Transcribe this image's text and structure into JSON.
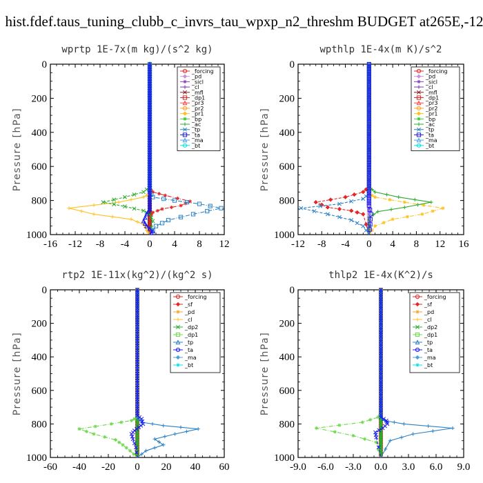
{
  "figure_title": "hist.fdef.taus_tuning_clubb_c_invrs_tau_wpxp_n2_threshm  BUDGET at265E,-12",
  "chart_data": [
    {
      "type": "line",
      "title": "wprtp  1E-7x(m kg)/(s^2 kg)",
      "ylabel": "Pressure [hPa]",
      "xlim": [
        -16,
        12
      ],
      "ylim": [
        1000,
        0
      ],
      "xticks": [
        "-16",
        "-12",
        "-8",
        "-4",
        "0",
        "4",
        "8",
        "12"
      ],
      "yticks": [
        "0",
        "200",
        "400",
        "600",
        "800",
        "1000"
      ],
      "legend": [
        "_forcing",
        "_pd",
        "_sicl",
        "_cl",
        "_mfl",
        "_dp1",
        "_pr3",
        "_pr2",
        "_pr1",
        "_bp",
        "_ac",
        "_tp",
        "_ta",
        "_ma",
        "_bt"
      ],
      "legend_position": "top-right",
      "series": [
        {
          "name": "_forcing",
          "color": "#222222",
          "x": [
            0,
            0
          ],
          "y": [
            0,
            1000
          ]
        },
        {
          "name": "_mfl",
          "color": "#8b1a1a",
          "x": [
            0,
            0
          ],
          "y": [
            0,
            1000
          ]
        },
        {
          "name": "_dp1",
          "color": "#e32626",
          "x": [
            0,
            0,
            0.5,
            2.5,
            6.5,
            5,
            2,
            0.5,
            0,
            0
          ],
          "y": [
            0,
            730,
            750,
            770,
            805,
            830,
            850,
            870,
            900,
            1000
          ]
        },
        {
          "name": "_pr1",
          "color": "#ffc020",
          "x": [
            0,
            0,
            -1,
            -5,
            -13,
            -9,
            -3,
            -1,
            -0.5,
            0
          ],
          "y": [
            0,
            760,
            780,
            810,
            845,
            880,
            910,
            940,
            975,
            1000
          ]
        },
        {
          "name": "_ac",
          "color": "#2aaa2a",
          "x": [
            0,
            0,
            -1,
            -4,
            -7.5,
            -4,
            -1,
            0,
            0.5,
            0
          ],
          "y": [
            0,
            720,
            750,
            780,
            810,
            835,
            860,
            880,
            920,
            1000
          ]
        },
        {
          "name": "_tp",
          "color": "#2880c8",
          "x": [
            0,
            0,
            0.5,
            4,
            8,
            11.5,
            7,
            3,
            1,
            0
          ],
          "y": [
            0,
            750,
            780,
            800,
            820,
            845,
            880,
            915,
            950,
            1000
          ]
        },
        {
          "name": "_ta",
          "color": "#1a1aee",
          "x": [
            0,
            0,
            0,
            -0.5,
            -1,
            -0.5,
            0.5,
            0
          ],
          "y": [
            0,
            820,
            850,
            880,
            920,
            950,
            980,
            1000
          ]
        }
      ]
    },
    {
      "type": "line",
      "title": "wpthlp  1E-4x(m K)/s^2",
      "ylabel": "Pressure [hPa]",
      "xlim": [
        -12,
        16
      ],
      "ylim": [
        1000,
        0
      ],
      "xticks": [
        "-12",
        "-8",
        "-4",
        "0",
        "4",
        "8",
        "12",
        "16"
      ],
      "yticks": [
        "0",
        "200",
        "400",
        "600",
        "800",
        "1000"
      ],
      "legend": [
        "_forcing",
        "_pd",
        "_sicl",
        "_cl",
        "_mfl",
        "_dp1",
        "_pr3",
        "_pr2",
        "_pr1",
        "_bp",
        "_ac",
        "_tp",
        "_ta",
        "_ma",
        "_bt"
      ],
      "legend_position": "top-right",
      "series": [
        {
          "name": "_forcing",
          "color": "#c890d8",
          "x": [
            0,
            0
          ],
          "y": [
            0,
            1000
          ]
        },
        {
          "name": "_dp1",
          "color": "#e32626",
          "x": [
            0,
            0,
            -1,
            -4,
            -9,
            -7,
            -3,
            -1,
            0
          ],
          "y": [
            0,
            720,
            750,
            780,
            810,
            840,
            860,
            880,
            1000
          ]
        },
        {
          "name": "_pr1",
          "color": "#ffc020",
          "x": [
            0,
            0,
            1,
            6,
            12.5,
            9,
            4,
            1,
            0
          ],
          "y": [
            0,
            760,
            780,
            810,
            845,
            880,
            910,
            950,
            1000
          ]
        },
        {
          "name": "_ac",
          "color": "#2aaa2a",
          "x": [
            0,
            0,
            1,
            5,
            10.5,
            6,
            1.5,
            0,
            0
          ],
          "y": [
            0,
            720,
            750,
            780,
            810,
            840,
            865,
            900,
            1000
          ]
        },
        {
          "name": "_tp",
          "color": "#2880c8",
          "x": [
            0,
            0,
            -1,
            -5,
            -11.5,
            -7,
            -3,
            -1,
            0
          ],
          "y": [
            0,
            760,
            790,
            820,
            845,
            880,
            915,
            950,
            1000
          ]
        },
        {
          "name": "_ta",
          "color": "#1a1aee",
          "x": [
            0,
            0,
            0.3,
            0.2,
            0
          ],
          "y": [
            0,
            830,
            880,
            940,
            1000
          ]
        }
      ]
    },
    {
      "type": "line",
      "title": "rtp2  1E-11x(kg^2)/(kg^2 s)",
      "ylabel": "Pressure [hPa]",
      "xlim": [
        -60,
        60
      ],
      "ylim": [
        1000,
        0
      ],
      "xticks": [
        "-60",
        "-40",
        "-20",
        "0",
        "20",
        "40",
        "60"
      ],
      "yticks": [
        "0",
        "200",
        "400",
        "600",
        "800",
        "1000"
      ],
      "legend": [
        "_forcing",
        "_sf",
        "_pd",
        "_cl",
        "_dp2",
        "_dp1",
        "_tp",
        "_ta",
        "_ma",
        "_bt"
      ],
      "legend_position": "top-right",
      "series": [
        {
          "name": "_forcing",
          "color": "#e32626",
          "x": [
            0,
            0
          ],
          "y": [
            0,
            1000
          ]
        },
        {
          "name": "_dp2",
          "color": "#2aaa2a",
          "x": [
            0,
            0,
            0,
            0,
            0
          ],
          "y": [
            0,
            800,
            860,
            940,
            1000
          ]
        },
        {
          "name": "_dp1",
          "color": "#6cd84a",
          "x": [
            0,
            0,
            -4,
            -18,
            -40,
            -30,
            -15,
            -10,
            -5,
            0
          ],
          "y": [
            0,
            760,
            780,
            800,
            830,
            860,
            895,
            925,
            960,
            1000
          ]
        },
        {
          "name": "_tp",
          "color": "#2880c8",
          "x": [
            0,
            0,
            3,
            18,
            42,
            26,
            12,
            18,
            6,
            0
          ],
          "y": [
            0,
            760,
            790,
            810,
            830,
            860,
            890,
            925,
            960,
            1000
          ]
        },
        {
          "name": "_ta",
          "color": "#1a1aee",
          "x": [
            0,
            0,
            3,
            4,
            1,
            -2,
            -4,
            -3,
            -1,
            0
          ],
          "y": [
            0,
            750,
            770,
            800,
            820,
            840,
            860,
            890,
            940,
            1000
          ]
        }
      ]
    },
    {
      "type": "line",
      "title": "thlp2  1E-4x(K^2)/s",
      "ylabel": "Pressure [hPa]",
      "xlim": [
        -9,
        9
      ],
      "ylim": [
        1000,
        0
      ],
      "xticks": [
        "-9.0",
        "-6.0",
        "-3.0",
        "0.0",
        "3.0",
        "6.0",
        "9.0"
      ],
      "yticks": [
        "0",
        "200",
        "400",
        "600",
        "800",
        "1000"
      ],
      "legend": [
        "_forcing",
        "_sf",
        "_pd",
        "_cl",
        "_dp2",
        "_dp1",
        "_tp",
        "_ta",
        "_ma",
        "_bt"
      ],
      "legend_position": "top-right",
      "series": [
        {
          "name": "_forcing",
          "color": "#e32626",
          "x": [
            0,
            0
          ],
          "y": [
            0,
            1000
          ]
        },
        {
          "name": "_dp2",
          "color": "#2aaa2a",
          "x": [
            0,
            0,
            0,
            0,
            0
          ],
          "y": [
            0,
            800,
            860,
            940,
            1000
          ]
        },
        {
          "name": "_dp1",
          "color": "#6cd84a",
          "x": [
            0,
            0,
            -0.3,
            -2,
            -7,
            -3,
            -0.5,
            0
          ],
          "y": [
            0,
            740,
            760,
            790,
            825,
            870,
            910,
            1000
          ]
        },
        {
          "name": "_tp",
          "color": "#2880c8",
          "x": [
            0,
            0,
            0.4,
            2.5,
            7.8,
            3.5,
            1,
            0
          ],
          "y": [
            0,
            760,
            780,
            800,
            825,
            860,
            900,
            1000
          ]
        },
        {
          "name": "_ta",
          "color": "#1a1aee",
          "x": [
            0,
            0,
            0.6,
            0.7,
            0.2,
            -0.6,
            -0.5,
            0
          ],
          "y": [
            0,
            760,
            780,
            800,
            825,
            850,
            880,
            1000
          ]
        }
      ]
    }
  ]
}
